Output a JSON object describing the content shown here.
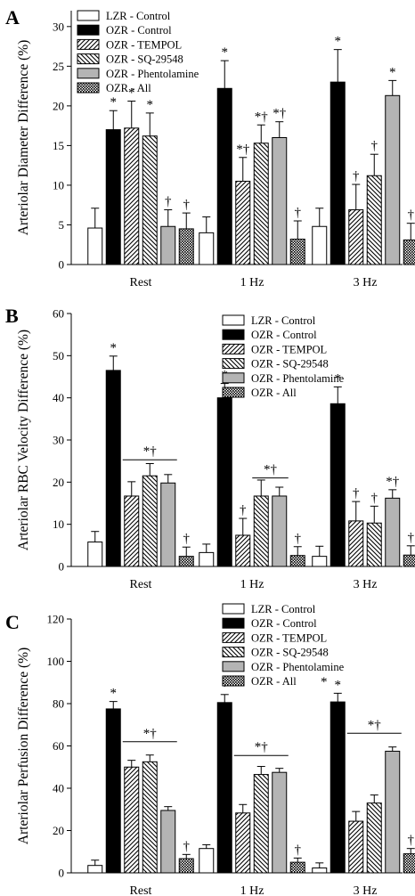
{
  "figure": {
    "legend_entries": [
      "LZR - Control",
      "OZR - Control",
      "OZR - TEMPOL",
      "OZR - SQ-29548",
      "OZR - Phentolamine",
      "OZR - All"
    ],
    "series_styles": [
      {
        "fill": "#ffffff",
        "pattern": "solid"
      },
      {
        "fill": "#000000",
        "pattern": "solid"
      },
      {
        "fill": "#ffffff",
        "pattern": "diag-right"
      },
      {
        "fill": "#ffffff",
        "pattern": "diag-left"
      },
      {
        "fill": "#b4b4b4",
        "pattern": "solid"
      },
      {
        "fill": "#ffffff",
        "pattern": "crosshatch"
      }
    ]
  },
  "chart_data": [
    {
      "panel_label": "A",
      "type": "bar",
      "ylabel": "Arteriolar Diameter Difference (%)",
      "ylim": [
        0,
        32
      ],
      "yticks": [
        0,
        5,
        10,
        15,
        20,
        25,
        30
      ],
      "categories": [
        "Rest",
        "1 Hz",
        "3 Hz"
      ],
      "legend_position": "top-left",
      "legend_extra_mark": "",
      "series": [
        {
          "name": "LZR - Control",
          "values": [
            4.6,
            4.0,
            4.8
          ],
          "errors": [
            2.5,
            2.0,
            2.3
          ],
          "marks": [
            "",
            "",
            ""
          ]
        },
        {
          "name": "OZR - Control",
          "values": [
            17.0,
            22.2,
            23.0
          ],
          "errors": [
            2.4,
            3.5,
            4.1
          ],
          "marks": [
            "*",
            "*",
            "*"
          ]
        },
        {
          "name": "OZR - TEMPOL",
          "values": [
            17.2,
            10.5,
            6.9
          ],
          "errors": [
            3.4,
            3.0,
            3.2
          ],
          "marks": [
            "*",
            "*†",
            "†"
          ]
        },
        {
          "name": "OZR - SQ-29548",
          "values": [
            16.2,
            15.3,
            11.2
          ],
          "errors": [
            2.9,
            2.3,
            2.7
          ],
          "marks": [
            "*",
            "*†",
            "†"
          ]
        },
        {
          "name": "OZR - Phentolamine",
          "values": [
            4.8,
            16.0,
            21.3
          ],
          "errors": [
            2.1,
            2.0,
            1.9
          ],
          "marks": [
            "†",
            "*†",
            "*"
          ]
        },
        {
          "name": "OZR - All",
          "values": [
            4.5,
            3.2,
            3.1
          ],
          "errors": [
            2.0,
            2.3,
            2.1
          ],
          "marks": [
            "†",
            "†",
            "†"
          ]
        }
      ],
      "group_brackets": []
    },
    {
      "panel_label": "B",
      "type": "bar",
      "ylabel": "Arteriolar RBC Velocity Difference (%)",
      "ylim": [
        0,
        60
      ],
      "yticks": [
        0,
        10,
        20,
        30,
        40,
        50,
        60
      ],
      "categories": [
        "Rest",
        "1 Hz",
        "3 Hz"
      ],
      "legend_position": "top-right",
      "legend_extra_mark": "",
      "series": [
        {
          "name": "LZR - Control",
          "values": [
            5.8,
            3.3,
            2.4
          ],
          "errors": [
            2.5,
            2.0,
            2.4
          ],
          "marks": [
            "",
            "",
            ""
          ]
        },
        {
          "name": "OZR - Control",
          "values": [
            46.5,
            40.0,
            38.6
          ],
          "errors": [
            3.4,
            3.4,
            4.0
          ],
          "marks": [
            "*",
            "*",
            "*"
          ]
        },
        {
          "name": "OZR - TEMPOL",
          "values": [
            16.7,
            7.4,
            10.8
          ],
          "errors": [
            3.4,
            4.0,
            4.6
          ],
          "marks": [
            "",
            "†",
            "†"
          ]
        },
        {
          "name": "OZR - SQ-29548",
          "values": [
            21.5,
            16.7,
            10.3
          ],
          "errors": [
            2.9,
            3.8,
            4.0
          ],
          "marks": [
            "",
            "",
            "†"
          ]
        },
        {
          "name": "OZR - Phentolamine",
          "values": [
            19.8,
            16.7,
            16.2
          ],
          "errors": [
            2.0,
            2.1,
            2.0
          ],
          "marks": [
            "",
            "",
            "*†"
          ]
        },
        {
          "name": "OZR - All",
          "values": [
            2.4,
            2.6,
            2.7
          ],
          "errors": [
            2.2,
            2.1,
            2.2
          ],
          "marks": [
            "†",
            "†",
            "†"
          ]
        }
      ],
      "group_brackets": [
        {
          "category": 0,
          "from_series": 2,
          "to_series": 4,
          "value": 25.3,
          "mark": "*†"
        },
        {
          "category": 1,
          "from_series": 3,
          "to_series": 4,
          "value": 21.0,
          "mark": "*†"
        }
      ]
    },
    {
      "panel_label": "C",
      "type": "bar",
      "ylabel": "Arteriolar Perfusion Difference (%)",
      "ylim": [
        0,
        120
      ],
      "yticks": [
        0,
        20,
        40,
        60,
        80,
        100,
        120
      ],
      "categories": [
        "Rest",
        "1 Hz",
        "3 Hz"
      ],
      "legend_position": "top-right",
      "legend_extra_mark": "*",
      "series": [
        {
          "name": "LZR - Control",
          "values": [
            3.5,
            11.5,
            2.3
          ],
          "errors": [
            2.5,
            1.8,
            2.4
          ],
          "marks": [
            "",
            "",
            ""
          ]
        },
        {
          "name": "OZR - Control",
          "values": [
            77.5,
            80.5,
            80.8
          ],
          "errors": [
            3.5,
            3.8,
            4.1
          ],
          "marks": [
            "*",
            "*",
            "*"
          ]
        },
        {
          "name": "OZR - TEMPOL",
          "values": [
            50.0,
            28.3,
            24.4
          ],
          "errors": [
            3.2,
            4.0,
            4.6
          ],
          "marks": [
            "",
            "",
            ""
          ]
        },
        {
          "name": "OZR - SQ-29548",
          "values": [
            52.5,
            46.5,
            33.0
          ],
          "errors": [
            3.2,
            3.8,
            3.8
          ],
          "marks": [
            "",
            "",
            ""
          ]
        },
        {
          "name": "OZR - Phentolamine",
          "values": [
            29.5,
            47.5,
            57.5
          ],
          "errors": [
            1.8,
            1.9,
            2.0
          ],
          "marks": [
            "",
            "",
            ""
          ]
        },
        {
          "name": "OZR - All",
          "values": [
            6.7,
            5.0,
            9.0
          ],
          "errors": [
            2.0,
            2.0,
            2.5
          ],
          "marks": [
            "†",
            "†",
            "†"
          ]
        }
      ],
      "group_brackets": [
        {
          "category": 0,
          "from_series": 2,
          "to_series": 4,
          "value": 62.0,
          "mark": "*†"
        },
        {
          "category": 1,
          "from_series": 2,
          "to_series": 4,
          "value": 55.5,
          "mark": "*†"
        },
        {
          "category": 2,
          "from_series": 2,
          "to_series": 4,
          "value": 66.0,
          "mark": "*†"
        }
      ]
    }
  ]
}
